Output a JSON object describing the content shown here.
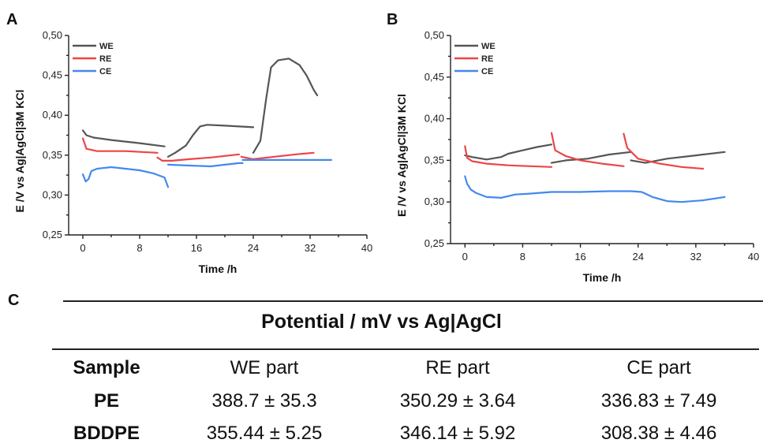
{
  "panels": {
    "a": "A",
    "b": "B",
    "c": "C"
  },
  "chart_data": [
    {
      "type": "line",
      "panel": "A",
      "xlabel": "Time /h",
      "ylabel": "E /V vs Ag|AgCl|3M KCl",
      "xlim": [
        -2,
        40
      ],
      "ylim": [
        0.25,
        0.5
      ],
      "xticks": [
        "0",
        "8",
        "16",
        "24",
        "32",
        "40"
      ],
      "yticks": [
        "0,25",
        "0,30",
        "0,35",
        "0,40",
        "0,45",
        "0,50"
      ],
      "legend_position": "top-left",
      "series": [
        {
          "name": "WE",
          "color": "#555555",
          "segments": [
            [
              [
                0,
                0.381
              ],
              [
                0.5,
                0.375
              ],
              [
                1.5,
                0.372
              ],
              [
                4,
                0.369
              ],
              [
                8,
                0.365
              ],
              [
                11.5,
                0.361
              ]
            ],
            [
              [
                12,
                0.348
              ],
              [
                13,
                0.353
              ],
              [
                14.5,
                0.362
              ],
              [
                15.5,
                0.375
              ],
              [
                16.5,
                0.386
              ],
              [
                17.5,
                0.388
              ],
              [
                20,
                0.387
              ],
              [
                24,
                0.385
              ]
            ],
            [
              [
                24,
                0.353
              ],
              [
                25,
                0.368
              ],
              [
                25.8,
                0.42
              ],
              [
                26.5,
                0.46
              ],
              [
                27.5,
                0.469
              ],
              [
                29,
                0.471
              ],
              [
                30.5,
                0.463
              ],
              [
                31.5,
                0.45
              ],
              [
                32.5,
                0.432
              ],
              [
                33,
                0.425
              ]
            ]
          ]
        },
        {
          "name": "RE",
          "color": "#ee4444",
          "segments": [
            [
              [
                0,
                0.371
              ],
              [
                0.5,
                0.358
              ],
              [
                2,
                0.355
              ],
              [
                6,
                0.355
              ],
              [
                10.5,
                0.353
              ]
            ],
            [
              [
                10.5,
                0.347
              ],
              [
                11.2,
                0.343
              ],
              [
                12.5,
                0.343
              ],
              [
                15,
                0.345
              ],
              [
                18,
                0.347
              ],
              [
                22,
                0.351
              ]
            ],
            [
              [
                22.3,
                0.348
              ],
              [
                24,
                0.345
              ],
              [
                27,
                0.348
              ],
              [
                30,
                0.351
              ],
              [
                32.5,
                0.353
              ]
            ]
          ]
        },
        {
          "name": "CE",
          "color": "#4488ee",
          "segments": [
            [
              [
                0,
                0.326
              ],
              [
                0.4,
                0.317
              ],
              [
                0.8,
                0.32
              ],
              [
                1.2,
                0.33
              ],
              [
                2,
                0.333
              ],
              [
                4,
                0.335
              ],
              [
                6,
                0.333
              ],
              [
                8,
                0.331
              ],
              [
                10,
                0.327
              ],
              [
                11.5,
                0.322
              ],
              [
                12,
                0.31
              ]
            ],
            [
              [
                12,
                0.338
              ],
              [
                15,
                0.337
              ],
              [
                18,
                0.336
              ],
              [
                20,
                0.338
              ],
              [
                22,
                0.34
              ],
              [
                22.5,
                0.34
              ]
            ],
            [
              [
                22.5,
                0.344
              ],
              [
                26,
                0.344
              ],
              [
                30,
                0.344
              ],
              [
                35,
                0.344
              ]
            ]
          ]
        }
      ]
    },
    {
      "type": "line",
      "panel": "B",
      "xlabel": "Time /h",
      "ylabel": "E /V vs Ag|AgCl|3M KCl",
      "xlim": [
        -2,
        40
      ],
      "ylim": [
        0.25,
        0.5
      ],
      "xticks": [
        "0",
        "8",
        "16",
        "24",
        "32",
        "40"
      ],
      "yticks": [
        "0,25",
        "0,30",
        "0,35",
        "0,40",
        "0,45",
        "0,50"
      ],
      "legend_position": "top-left",
      "series": [
        {
          "name": "WE",
          "color": "#555555",
          "segments": [
            [
              [
                0,
                0.356
              ],
              [
                1,
                0.354
              ],
              [
                3,
                0.351
              ],
              [
                5,
                0.354
              ],
              [
                6,
                0.358
              ],
              [
                8,
                0.362
              ],
              [
                10,
                0.366
              ],
              [
                12,
                0.369
              ]
            ],
            [
              [
                12,
                0.347
              ],
              [
                14,
                0.35
              ],
              [
                17,
                0.352
              ],
              [
                20,
                0.357
              ],
              [
                23,
                0.36
              ]
            ],
            [
              [
                23,
                0.35
              ],
              [
                25,
                0.347
              ],
              [
                28,
                0.352
              ],
              [
                32,
                0.356
              ],
              [
                36,
                0.36
              ]
            ]
          ]
        },
        {
          "name": "RE",
          "color": "#ee4444",
          "segments": [
            [
              [
                0,
                0.367
              ],
              [
                0.3,
                0.353
              ],
              [
                1,
                0.349
              ],
              [
                3,
                0.346
              ],
              [
                6,
                0.344
              ],
              [
                9,
                0.343
              ],
              [
                12,
                0.342
              ]
            ],
            [
              [
                12,
                0.383
              ],
              [
                12.5,
                0.362
              ],
              [
                14,
                0.355
              ],
              [
                16,
                0.35
              ],
              [
                19,
                0.346
              ],
              [
                22,
                0.343
              ]
            ],
            [
              [
                22,
                0.382
              ],
              [
                22.5,
                0.365
              ],
              [
                24,
                0.352
              ],
              [
                27,
                0.346
              ],
              [
                30,
                0.342
              ],
              [
                33,
                0.34
              ]
            ]
          ]
        },
        {
          "name": "CE",
          "color": "#4488ee",
          "segments": [
            [
              [
                0,
                0.331
              ],
              [
                0.3,
                0.322
              ],
              [
                0.8,
                0.315
              ],
              [
                1.5,
                0.311
              ],
              [
                3,
                0.306
              ],
              [
                5,
                0.305
              ],
              [
                7,
                0.309
              ],
              [
                9,
                0.31
              ],
              [
                12,
                0.312
              ],
              [
                16,
                0.312
              ],
              [
                20,
                0.313
              ],
              [
                23,
                0.313
              ],
              [
                24.5,
                0.312
              ],
              [
                26,
                0.306
              ],
              [
                28,
                0.301
              ],
              [
                30,
                0.3
              ],
              [
                33,
                0.302
              ],
              [
                36,
                0.306
              ]
            ]
          ]
        }
      ]
    }
  ],
  "table": {
    "title": "Potential / mV vs Ag|AgCl",
    "headers": [
      "Sample",
      "WE part",
      "RE part",
      "CE part"
    ],
    "rows": [
      [
        "PE",
        "388.7 ± 35.3",
        "350.29 ± 3.64",
        "336.83 ± 7.49"
      ],
      [
        "BDDPE",
        "355.44 ± 5.25",
        "346.14 ± 5.92",
        "308.38 ± 4.46"
      ]
    ]
  }
}
